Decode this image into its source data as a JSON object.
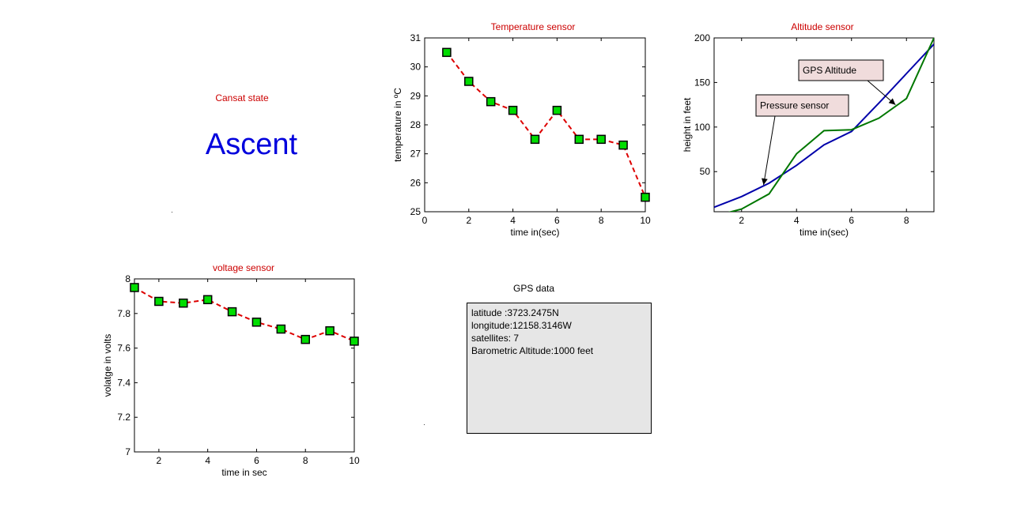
{
  "state": {
    "title": "Cansat state",
    "value": "Ascent"
  },
  "gps": {
    "title": "GPS data",
    "lines": [
      "latitude :3723.2475N",
      "longitude:12158.3146W",
      "satellites: 7",
      "Barometric Altitude:1000 feet"
    ]
  },
  "colors": {
    "title": "#cc0000",
    "state": "#0000dd",
    "marker_fill": "#00dd00",
    "dash_line": "#dd0000",
    "gps_line": "#007700",
    "pressure_line": "#0000aa",
    "annotation_bg": "#f0dcdc",
    "gps_box_bg": "#e6e6e6"
  },
  "chart_data": [
    {
      "id": "temperature",
      "type": "line",
      "title": "Temperature sensor",
      "xlabel": "time in(sec)",
      "ylabel": "temperature in ºC",
      "xlim": [
        0,
        10
      ],
      "ylim": [
        25,
        31
      ],
      "xticks": [
        0,
        2,
        4,
        6,
        8,
        10
      ],
      "yticks": [
        25,
        26,
        27,
        28,
        29,
        30,
        31
      ],
      "series": [
        {
          "x": [
            1,
            2,
            3,
            4,
            5,
            6,
            7,
            8,
            9,
            10
          ],
          "values": [
            30.5,
            29.5,
            28.8,
            28.5,
            27.5,
            28.5,
            27.5,
            27.5,
            27.3,
            25.5
          ]
        }
      ]
    },
    {
      "id": "altitude",
      "type": "line",
      "title": "Altitude sensor",
      "xlabel": "time in(sec)",
      "ylabel": "height in feet",
      "xlim": [
        1,
        9
      ],
      "ylim": [
        5,
        200
      ],
      "xticks": [
        2,
        4,
        6,
        8
      ],
      "yticks": [
        50,
        100,
        150,
        200
      ],
      "series": [
        {
          "x": [
            1,
            2,
            3,
            4,
            5,
            6,
            7,
            8,
            9
          ],
          "values": [
            10,
            22,
            37,
            57,
            80,
            95,
            127,
            160,
            193
          ]
        },
        {
          "x": [
            1,
            2,
            3,
            4,
            5,
            6,
            7,
            8,
            9
          ],
          "values": [
            0,
            8,
            25,
            70,
            96,
            97,
            110,
            132,
            200
          ]
        }
      ],
      "annotations": [
        {
          "text": "GPS Altitude",
          "target": [
            7.6,
            125
          ]
        },
        {
          "text": "Pressure sensor",
          "target": [
            2.8,
            35
          ]
        }
      ]
    },
    {
      "id": "voltage",
      "type": "line",
      "title": "voltage sensor",
      "xlabel": "time in sec",
      "ylabel": "volatge in volts",
      "xlim": [
        1,
        10
      ],
      "ylim": [
        7,
        8
      ],
      "xticks": [
        2,
        4,
        6,
        8,
        10
      ],
      "yticks": [
        7,
        7.2,
        7.4,
        7.6,
        7.8,
        8
      ],
      "series": [
        {
          "x": [
            1,
            2,
            3,
            4,
            5,
            6,
            7,
            8,
            9,
            10
          ],
          "values": [
            7.95,
            7.87,
            7.86,
            7.88,
            7.81,
            7.75,
            7.71,
            7.65,
            7.7,
            7.64
          ]
        }
      ]
    }
  ]
}
